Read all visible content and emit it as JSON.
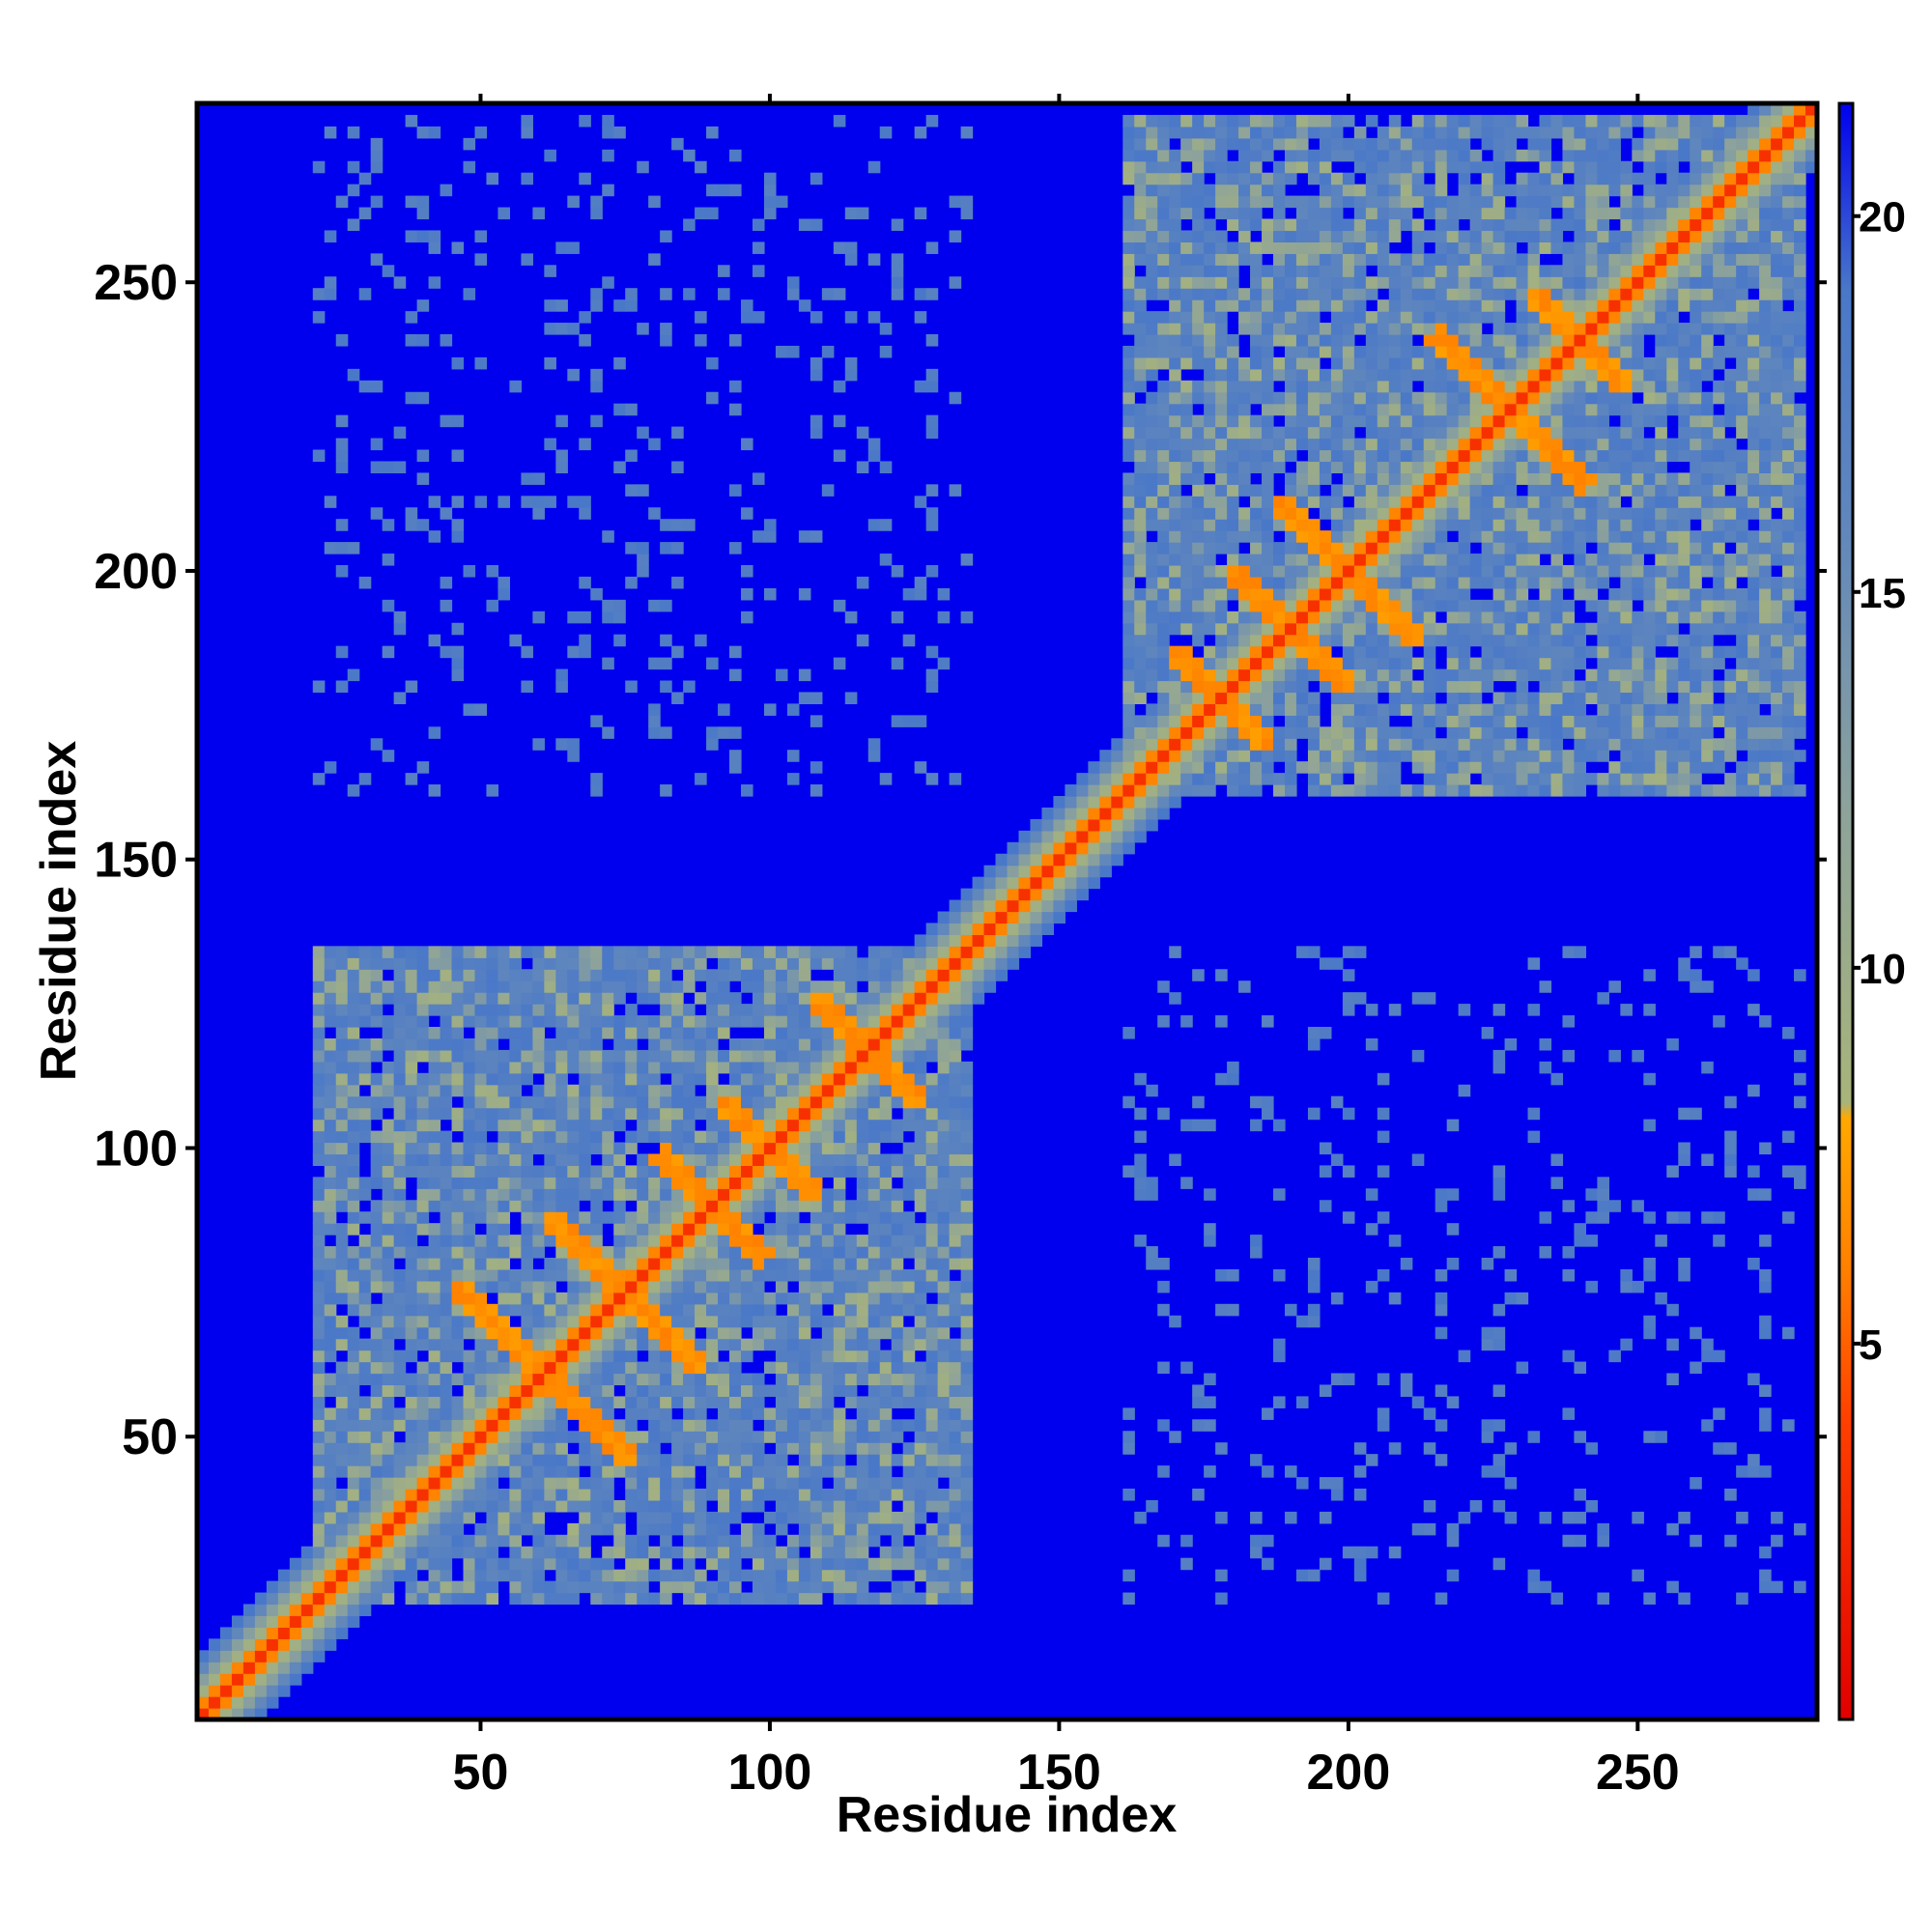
{
  "chart_data": {
    "type": "heatmap",
    "title": "",
    "xlabel": "Residue index",
    "ylabel": "Residue index",
    "xlim": [
      1,
      281
    ],
    "ylim": [
      1,
      281
    ],
    "x_ticks": [
      50,
      100,
      150,
      200,
      250
    ],
    "y_ticks": [
      50,
      100,
      150,
      200,
      250
    ],
    "x_tick_labels": [
      "50",
      "100",
      "150",
      "200",
      "250"
    ],
    "y_tick_labels": [
      "50",
      "100",
      "150",
      "200",
      "250"
    ],
    "colorbar": {
      "range": [
        0,
        21.5
      ],
      "ticks": [
        5,
        10,
        15,
        20
      ],
      "tick_labels": [
        "5",
        "10",
        "15",
        "20"
      ],
      "stops": [
        {
          "value": 0,
          "color": "#e00000"
        },
        {
          "value": 4,
          "color": "#ff4000"
        },
        {
          "value": 6,
          "color": "#ff8000"
        },
        {
          "value": 8,
          "color": "#ffa800"
        },
        {
          "value": 8.2,
          "color": "#a8b47a"
        },
        {
          "value": 12,
          "color": "#8ea39a"
        },
        {
          "value": 16,
          "color": "#5f86bd"
        },
        {
          "value": 19,
          "color": "#4a78c8"
        },
        {
          "value": 21.5,
          "color": "#0000ee"
        }
      ]
    },
    "background_value": 21.5,
    "domains": [
      {
        "name_hidden": "",
        "start": 22,
        "end": 135
      },
      {
        "name_hidden": "",
        "start": 162,
        "end": 278
      }
    ],
    "diagonal_half_width": 5,
    "helix_crosses": [
      {
        "center": [
          61,
          61
        ],
        "arm": 16
      },
      {
        "center": [
          75,
          75
        ],
        "arm": 14
      },
      {
        "center": [
          90,
          90
        ],
        "arm": 10
      },
      {
        "center": [
          100,
          100
        ],
        "arm": 9
      },
      {
        "center": [
          117,
          117
        ],
        "arm": 10
      },
      {
        "center": [
          178,
          178
        ],
        "arm": 9
      },
      {
        "center": [
          190,
          190
        ],
        "arm": 11
      },
      {
        "center": [
          200,
          200
        ],
        "arm": 13
      },
      {
        "center": [
          228,
          228
        ],
        "arm": 14
      },
      {
        "center": [
          240,
          240
        ],
        "arm": 9
      }
    ]
  }
}
